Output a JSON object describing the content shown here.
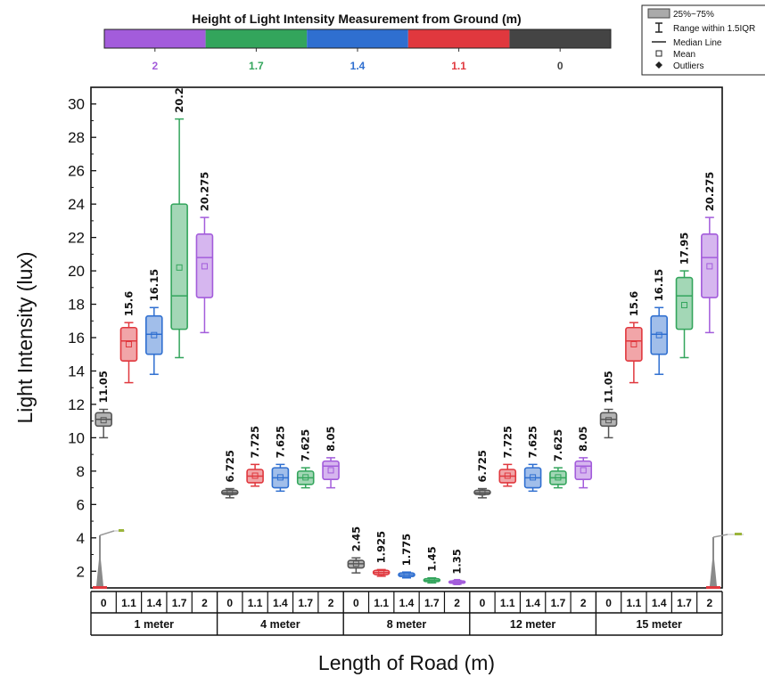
{
  "chart_data": {
    "type": "box",
    "title": "Height of Light Intensity Measurement from Ground (m)",
    "xlabel": "Length of Road (m)",
    "ylabel": "Light Intensity (lux)",
    "ylim": [
      1,
      31
    ],
    "yticks": [
      2,
      4,
      6,
      8,
      10,
      12,
      14,
      16,
      18,
      20,
      22,
      24,
      26,
      28,
      30
    ],
    "height_legend": [
      {
        "label": "2",
        "color": "#A35CDB"
      },
      {
        "label": "1.7",
        "color": "#33A55C"
      },
      {
        "label": "1.4",
        "color": "#2F6FD0"
      },
      {
        "label": "1.1",
        "color": "#E0383E"
      },
      {
        "label": "0",
        "color": "#444444"
      }
    ],
    "box_legend": [
      "25%~75%",
      "Range within 1.5IQR",
      "Median Line",
      "Mean",
      "Outliers"
    ],
    "series_colors": {
      "0": "#555555",
      "1.1": "#E0383E",
      "1.4": "#2F6FD0",
      "1.7": "#33A55C",
      "2": "#A35CDB"
    },
    "groups": [
      {
        "name": "1 meter",
        "boxes": [
          {
            "height": "0",
            "label": "11.05",
            "q1": 10.7,
            "q3": 11.5,
            "median": 11.1,
            "mean": 11.05,
            "min": 10.0,
            "max": 11.7
          },
          {
            "height": "1.1",
            "label": "15.6",
            "q1": 14.6,
            "q3": 16.6,
            "median": 15.8,
            "mean": 15.6,
            "min": 13.3,
            "max": 16.9
          },
          {
            "height": "1.4",
            "label": "16.15",
            "q1": 15.0,
            "q3": 17.3,
            "median": 16.2,
            "mean": 16.15,
            "min": 13.8,
            "max": 17.8
          },
          {
            "height": "1.7",
            "label": "20.2",
            "q1": 16.5,
            "q3": 24.0,
            "median": 18.5,
            "mean": 20.2,
            "min": 14.8,
            "max": 29.1
          },
          {
            "height": "2",
            "label": "20.275",
            "q1": 18.4,
            "q3": 22.2,
            "median": 20.8,
            "mean": 20.275,
            "min": 16.3,
            "max": 23.2
          }
        ]
      },
      {
        "name": "4 meter",
        "boxes": [
          {
            "height": "0",
            "label": "6.725",
            "q1": 6.6,
            "q3": 6.85,
            "median": 6.7,
            "mean": 6.725,
            "min": 6.4,
            "max": 6.95
          },
          {
            "height": "1.1",
            "label": "7.725",
            "q1": 7.3,
            "q3": 8.1,
            "median": 7.7,
            "mean": 7.725,
            "min": 7.1,
            "max": 8.4
          },
          {
            "height": "1.4",
            "label": "7.625",
            "q1": 7.0,
            "q3": 8.2,
            "median": 7.6,
            "mean": 7.625,
            "min": 6.8,
            "max": 8.4
          },
          {
            "height": "1.7",
            "label": "7.625",
            "q1": 7.2,
            "q3": 8.0,
            "median": 7.6,
            "mean": 7.625,
            "min": 7.0,
            "max": 8.2
          },
          {
            "height": "2",
            "label": "8.05",
            "q1": 7.5,
            "q3": 8.6,
            "median": 8.3,
            "mean": 8.05,
            "min": 7.0,
            "max": 8.8
          }
        ]
      },
      {
        "name": "8 meter",
        "boxes": [
          {
            "height": "0",
            "label": "2.45",
            "q1": 2.2,
            "q3": 2.65,
            "median": 2.45,
            "mean": 2.45,
            "min": 1.9,
            "max": 2.8
          },
          {
            "height": "1.1",
            "label": "1.925",
            "q1": 1.8,
            "q3": 2.05,
            "median": 1.92,
            "mean": 1.925,
            "min": 1.7,
            "max": 2.1
          },
          {
            "height": "1.4",
            "label": "1.775",
            "q1": 1.68,
            "q3": 1.9,
            "median": 1.78,
            "mean": 1.775,
            "min": 1.6,
            "max": 1.95
          },
          {
            "height": "1.7",
            "label": "1.45",
            "q1": 1.38,
            "q3": 1.55,
            "median": 1.45,
            "mean": 1.45,
            "min": 1.3,
            "max": 1.6
          },
          {
            "height": "2",
            "label": "1.35",
            "q1": 1.28,
            "q3": 1.42,
            "median": 1.35,
            "mean": 1.35,
            "min": 1.22,
            "max": 1.45
          }
        ]
      },
      {
        "name": "12 meter",
        "boxes": [
          {
            "height": "0",
            "label": "6.725",
            "q1": 6.6,
            "q3": 6.85,
            "median": 6.7,
            "mean": 6.725,
            "min": 6.4,
            "max": 6.95
          },
          {
            "height": "1.1",
            "label": "7.725",
            "q1": 7.3,
            "q3": 8.1,
            "median": 7.7,
            "mean": 7.725,
            "min": 7.1,
            "max": 8.4
          },
          {
            "height": "1.4",
            "label": "7.625",
            "q1": 7.0,
            "q3": 8.2,
            "median": 7.6,
            "mean": 7.625,
            "min": 6.8,
            "max": 8.4
          },
          {
            "height": "1.7",
            "label": "7.625",
            "q1": 7.2,
            "q3": 8.0,
            "median": 7.6,
            "mean": 7.625,
            "min": 7.0,
            "max": 8.2
          },
          {
            "height": "2",
            "label": "8.05",
            "q1": 7.5,
            "q3": 8.6,
            "median": 8.3,
            "mean": 8.05,
            "min": 7.0,
            "max": 8.8
          }
        ]
      },
      {
        "name": "15 meter",
        "boxes": [
          {
            "height": "0",
            "label": "11.05",
            "q1": 10.7,
            "q3": 11.5,
            "median": 11.1,
            "mean": 11.05,
            "min": 10.0,
            "max": 11.7
          },
          {
            "height": "1.1",
            "label": "15.6",
            "q1": 14.6,
            "q3": 16.6,
            "median": 15.8,
            "mean": 15.6,
            "min": 13.3,
            "max": 16.9
          },
          {
            "height": "1.4",
            "label": "16.15",
            "q1": 15.0,
            "q3": 17.3,
            "median": 16.2,
            "mean": 16.15,
            "min": 13.8,
            "max": 17.8
          },
          {
            "height": "1.7",
            "label": "17.95",
            "q1": 16.5,
            "q3": 19.6,
            "median": 18.5,
            "mean": 17.95,
            "min": 14.8,
            "max": 20.0
          },
          {
            "height": "2",
            "label": "20.275",
            "q1": 18.4,
            "q3": 22.2,
            "median": 20.8,
            "mean": 20.275,
            "min": 16.3,
            "max": 23.2
          }
        ]
      }
    ]
  }
}
